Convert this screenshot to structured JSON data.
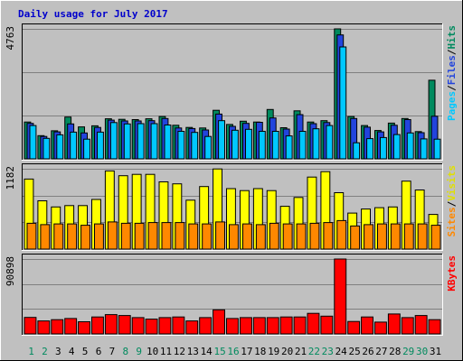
{
  "chart_data": {
    "type": "bar",
    "title": "Daily usage for July 2017",
    "days": [
      "1",
      "2",
      "3",
      "4",
      "5",
      "6",
      "7",
      "8",
      "9",
      "10",
      "11",
      "12",
      "13",
      "14",
      "15",
      "16",
      "17",
      "18",
      "19",
      "20",
      "21",
      "22",
      "23",
      "24",
      "25",
      "26",
      "27",
      "28",
      "29",
      "30",
      "31"
    ],
    "weekend_days": [
      "1",
      "2",
      "8",
      "9",
      "15",
      "16",
      "22",
      "23",
      "29",
      "30"
    ],
    "panels": [
      {
        "id": "top",
        "max_label": "4763",
        "ymax": 4763,
        "legend": [
          {
            "text": "Pages",
            "color": "#00c8ff"
          },
          {
            "text": "/",
            "color": "#000000"
          },
          {
            "text": "Files",
            "color": "#2244dd"
          },
          {
            "text": "/",
            "color": "#000000"
          },
          {
            "text": "Hits",
            "color": "#008a5e"
          }
        ],
        "series": [
          {
            "name": "Hits",
            "color": "#008a5e",
            "values": [
              1350,
              850,
              1030,
              1530,
              1170,
              1210,
              1470,
              1450,
              1440,
              1470,
              1550,
              1230,
              1150,
              1130,
              1780,
              1260,
              1380,
              1350,
              1810,
              1140,
              1760,
              1350,
              1400,
              4763,
              1550,
              1220,
              1040,
              1310,
              1480,
              1000,
              2880
            ]
          },
          {
            "name": "Files",
            "color": "#2244dd",
            "values": [
              1300,
              820,
              990,
              1280,
              950,
              1150,
              1420,
              1390,
              1390,
              1400,
              1480,
              1130,
              1110,
              1060,
              1640,
              1190,
              1300,
              1340,
              1500,
              1090,
              1620,
              1290,
              1330,
              4540,
              1480,
              1160,
              990,
              1230,
              1440,
              960,
              1560
            ]
          },
          {
            "name": "Pages",
            "color": "#00c8ff",
            "values": [
              1220,
              750,
              880,
              980,
              720,
              980,
              1330,
              1280,
              1290,
              1290,
              1240,
              1010,
              970,
              820,
              1400,
              1050,
              1080,
              1010,
              1010,
              840,
              1010,
              1100,
              1220,
              4100,
              590,
              740,
              780,
              890,
              950,
              730,
              720
            ]
          }
        ]
      },
      {
        "id": "middle",
        "max_label": "1182",
        "ymax": 1182,
        "legend": [
          {
            "text": "Sites",
            "color": "#ff8800"
          },
          {
            "text": "/",
            "color": "#000000"
          },
          {
            "text": "Visits",
            "color": "#e0e000"
          }
        ],
        "series": [
          {
            "name": "Visits",
            "color": "#ffff00",
            "values": [
              1030,
              710,
              620,
              640,
              640,
              730,
              1150,
              1080,
              1100,
              1100,
              990,
              960,
              720,
              920,
              1180,
              890,
              860,
              890,
              860,
              630,
              760,
              1060,
              1140,
              830,
              530,
              590,
              610,
              620,
              1000,
              870,
              510
            ]
          },
          {
            "name": "Sites",
            "color": "#ff8800",
            "values": [
              380,
              360,
              370,
              370,
              350,
              370,
              400,
              380,
              380,
              390,
              390,
              390,
              370,
              370,
              400,
              360,
              370,
              360,
              380,
              370,
              370,
              380,
              390,
              420,
              340,
              360,
              370,
              370,
              370,
              370,
              350
            ]
          }
        ]
      },
      {
        "id": "bottom",
        "max_label": "90898",
        "ymax": 90898,
        "legend": [
          {
            "text": "KBytes",
            "color": "#ff0000"
          }
        ],
        "series": [
          {
            "name": "KBytes",
            "color": "#ff0000",
            "values": [
              20000,
              15800,
              17300,
              18700,
              14800,
              20600,
              23400,
              22300,
              19800,
              18000,
              19800,
              20600,
              15800,
              19800,
              29200,
              18700,
              19800,
              19800,
              19800,
              20600,
              20600,
              25000,
              21600,
              90898,
              15100,
              20600,
              14400,
              24200,
              19800,
              22300,
              17300
            ]
          }
        ]
      }
    ]
  }
}
